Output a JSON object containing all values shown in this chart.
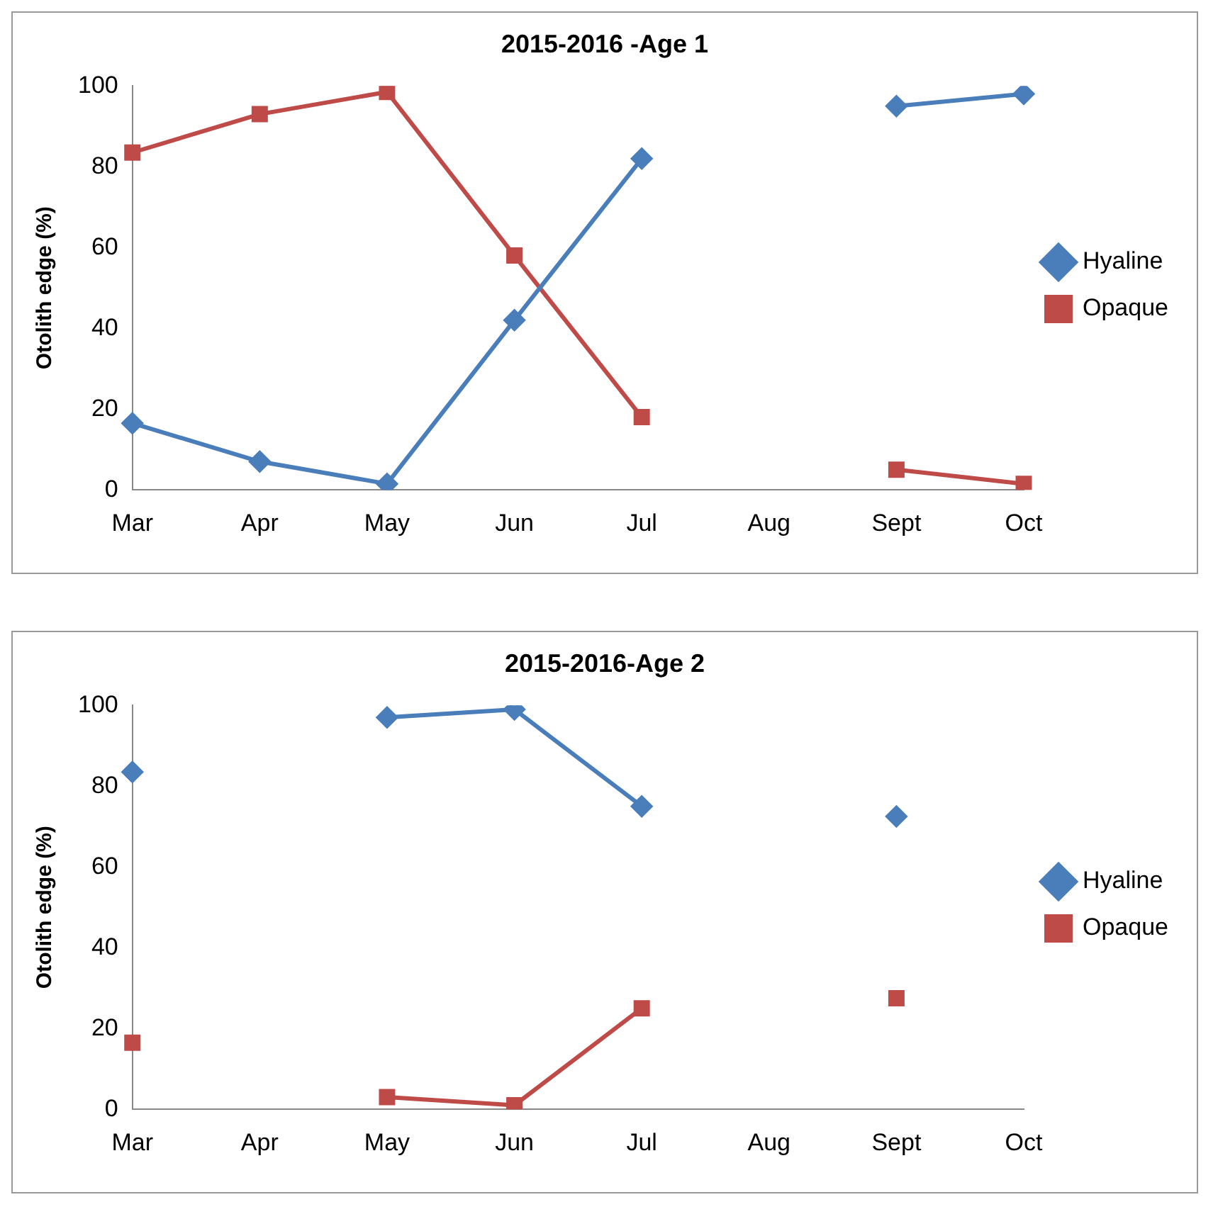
{
  "chart_data": [
    {
      "type": "line",
      "title": "2015-2016 -Age 1",
      "ylabel": "Otolith edge (%)",
      "categories": [
        "Mar",
        "Apr",
        "May",
        "Jun",
        "Jul",
        "Aug",
        "Sept",
        "Oct"
      ],
      "ylim": [
        0,
        100
      ],
      "yticks": [
        0,
        20,
        40,
        60,
        80,
        100
      ],
      "grid": false,
      "legend": "right",
      "series": [
        {
          "name": "Hyaline",
          "color": "#4a7ebb",
          "marker": "diamond",
          "values": [
            16.5,
            7,
            1.5,
            42,
            82,
            null,
            95,
            98
          ]
        },
        {
          "name": "Opaque",
          "color": "#be4b48",
          "marker": "square",
          "values": [
            83.5,
            93,
            98.5,
            58,
            18,
            null,
            5,
            1.5
          ]
        }
      ]
    },
    {
      "type": "line",
      "title": "2015-2016-Age 2",
      "ylabel": "Otolith edge (%)",
      "categories": [
        "Mar",
        "Apr",
        "May",
        "Jun",
        "Jul",
        "Aug",
        "Sept",
        "Oct"
      ],
      "ylim": [
        0,
        100
      ],
      "yticks": [
        0,
        20,
        40,
        60,
        80,
        100
      ],
      "grid": false,
      "legend": "right",
      "series": [
        {
          "name": "Hyaline",
          "color": "#4a7ebb",
          "marker": "diamond",
          "values": [
            83.5,
            null,
            97,
            99,
            75,
            null,
            72.5,
            null
          ]
        },
        {
          "name": "Opaque",
          "color": "#be4b48",
          "marker": "square",
          "values": [
            16.5,
            null,
            3,
            1,
            25,
            null,
            27.5,
            null
          ]
        }
      ]
    }
  ]
}
